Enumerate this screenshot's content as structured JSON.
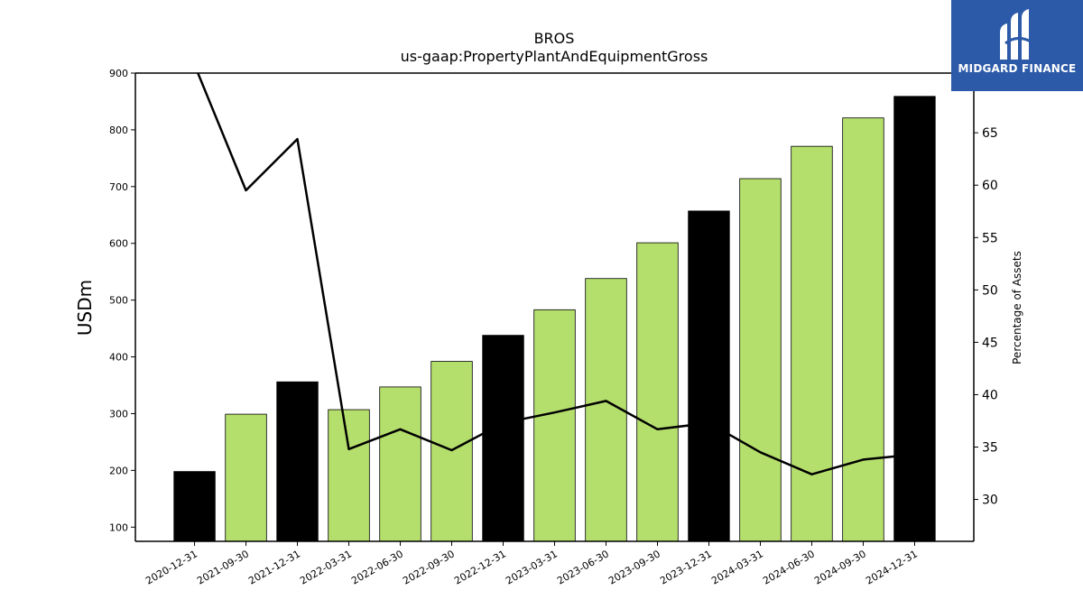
{
  "chart_data": {
    "type": "bar+line",
    "title": "BROS",
    "subtitle": "us-gaap:PropertyPlantAndEquipmentGross",
    "ylabel": "USDm",
    "y2label": "Percentage of Assets",
    "categories": [
      "2020-12-31",
      "2021-09-30",
      "2021-12-31",
      "2022-03-31",
      "2022-06-30",
      "2022-09-30",
      "2022-12-31",
      "2023-03-31",
      "2023-06-30",
      "2023-09-30",
      "2023-12-31",
      "2024-03-31",
      "2024-06-30",
      "2024-09-30",
      "2024-12-31"
    ],
    "bar_values": [
      198,
      299,
      356,
      307,
      347,
      392,
      438,
      483,
      538,
      601,
      657,
      714,
      771,
      821,
      859
    ],
    "bar_highlight": [
      true,
      false,
      true,
      false,
      false,
      false,
      true,
      false,
      false,
      false,
      true,
      false,
      false,
      false,
      true
    ],
    "line_values": [
      71.5,
      59.5,
      64.4,
      34.8,
      36.7,
      34.7,
      37.3,
      38.3,
      39.4,
      36.7,
      37.3,
      34.5,
      32.4,
      33.8,
      34.3
    ],
    "ylim": [
      75,
      900
    ],
    "y2lim": [
      26,
      70.7
    ],
    "yticks": [
      100,
      200,
      300,
      400,
      500,
      600,
      700,
      800,
      900
    ],
    "y2ticks": [
      30,
      35,
      40,
      45,
      50,
      55,
      60,
      65
    ],
    "colors": {
      "bar_highlight": "#000000",
      "bar": "#b5df6c",
      "line": "#000000"
    },
    "grid": false
  },
  "logo": {
    "text": "MIDGARD FINANCE"
  }
}
